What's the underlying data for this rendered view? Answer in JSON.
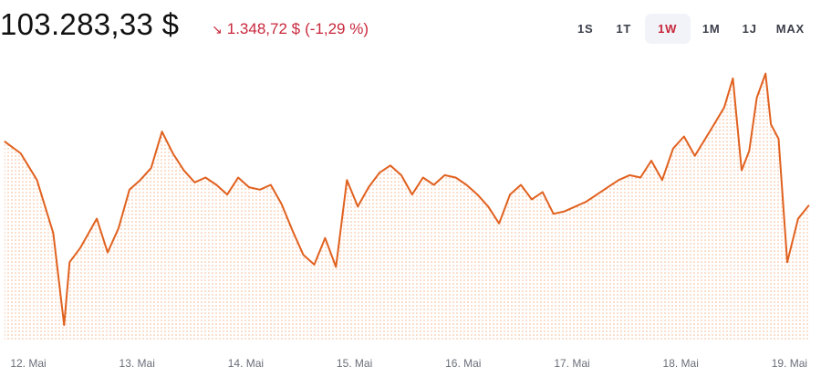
{
  "header": {
    "price": "103.283,33 $",
    "change_amount": "1.348,72 $",
    "change_percent": "(-1,29 %)",
    "change_icon": "arrow-down-right-icon",
    "change_color": "#c8283c",
    "ranges": [
      {
        "label": "1S",
        "active": false
      },
      {
        "label": "1T",
        "active": false
      },
      {
        "label": "1W",
        "active": true
      },
      {
        "label": "1M",
        "active": false
      },
      {
        "label": "1J",
        "active": false
      },
      {
        "label": "MAX",
        "active": false
      }
    ],
    "active_color": "#c8283c"
  },
  "chart_data": {
    "type": "area",
    "line_color": "#e0611f",
    "fill_color": "#f5b892",
    "x_ticks": [
      "12. Mai",
      "13. Mai",
      "14. Mai",
      "15. Mai",
      "16. Mai",
      "17. Mai",
      "18. Mai",
      "19. Mai"
    ],
    "x_start": "11. Mai 22:00",
    "x_end": "19. Mai 05:30",
    "grid": false,
    "ylim": [
      100500,
      106200
    ],
    "x": [
      0,
      0.15,
      0.3,
      0.45,
      0.55,
      0.6,
      0.7,
      0.85,
      0.95,
      1.05,
      1.15,
      1.25,
      1.35,
      1.45,
      1.55,
      1.65,
      1.75,
      1.85,
      1.95,
      2.05,
      2.15,
      2.25,
      2.35,
      2.45,
      2.55,
      2.65,
      2.75,
      2.85,
      2.95,
      3.05,
      3.15,
      3.25,
      3.35,
      3.45,
      3.55,
      3.65,
      3.75,
      3.85,
      3.95,
      4.05,
      4.15,
      4.25,
      4.35,
      4.45,
      4.55,
      4.65,
      4.75,
      4.85,
      4.95,
      5.05,
      5.15,
      5.25,
      5.35,
      5.45,
      5.55,
      5.65,
      5.75,
      5.85,
      5.95,
      6.05,
      6.15,
      6.25,
      6.35,
      6.5,
      6.62,
      6.7,
      6.78,
      6.85,
      6.92,
      7.0,
      7.05,
      7.12,
      7.2,
      7.3,
      7.4
    ],
    "y": [
      104600,
      104350,
      103800,
      102700,
      100800,
      102100,
      102400,
      103000,
      102300,
      102800,
      103600,
      103800,
      104050,
      104800,
      104350,
      104000,
      103750,
      103850,
      103700,
      103500,
      103850,
      103650,
      103600,
      103700,
      103300,
      102750,
      102250,
      102050,
      102600,
      102000,
      103800,
      103250,
      103650,
      103950,
      104100,
      103900,
      103500,
      103850,
      103700,
      103900,
      103850,
      103700,
      103500,
      103250,
      102900,
      103500,
      103700,
      103400,
      103550,
      103100,
      103150,
      103250,
      103350,
      103500,
      103650,
      103800,
      103900,
      103850,
      104200,
      103800,
      104450,
      104700,
      104300,
      104850,
      105300,
      105900,
      104000,
      104400,
      105500,
      106000,
      104950,
      104650,
      102100,
      103000,
      103280
    ]
  }
}
